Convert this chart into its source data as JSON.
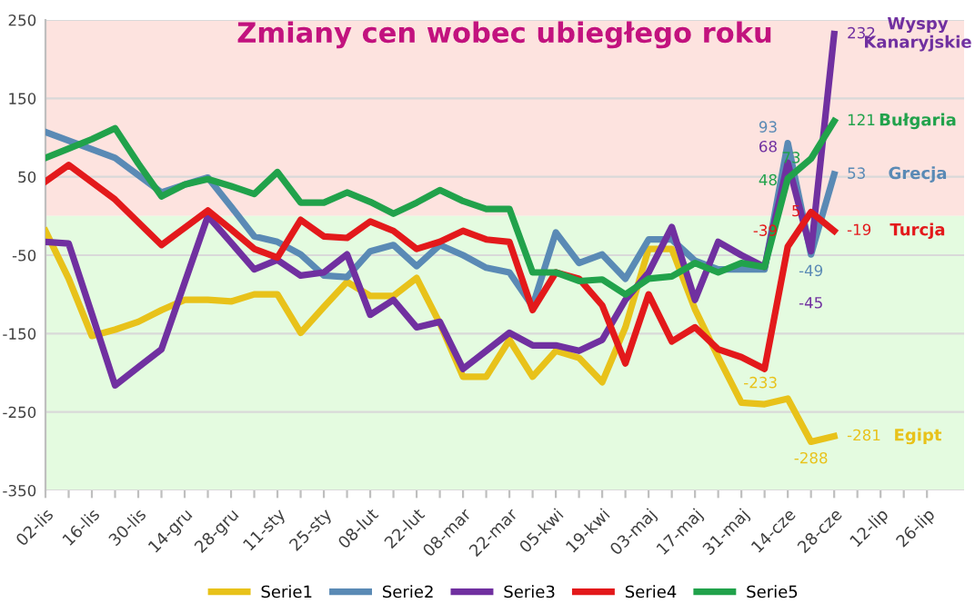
{
  "chart_data": {
    "type": "line",
    "title": "Zmiany cen wobec ubiegłego roku",
    "categories": [
      "02-lis",
      null,
      "16-lis",
      null,
      "30-lis",
      null,
      "14-gru",
      null,
      "28-gru",
      null,
      "11-sty",
      null,
      "25-sty",
      null,
      "08-lut",
      null,
      "22-lut",
      null,
      "08-mar",
      null,
      "22-mar",
      null,
      "05-kwi",
      null,
      "19-kwi",
      null,
      "03-maj",
      null,
      "17-maj",
      null,
      "31-maj",
      null,
      "14-cze",
      null,
      "28-cze",
      null,
      "12-lip",
      null,
      "26-lip"
    ],
    "series": [
      {
        "name": "Serie1",
        "color": "#e8c21a",
        "values": [
          -19,
          -80,
          -153,
          -145,
          -135,
          -120,
          -107,
          -107,
          -109,
          -100,
          -100,
          -149,
          -116,
          -84,
          -102,
          -102,
          -79,
          -137,
          -205,
          -205,
          -158,
          -205,
          -172,
          -181,
          -212,
          -142,
          -42,
          -42,
          -119,
          -180,
          -238,
          -240,
          -233,
          -288,
          -281,
          null,
          null,
          null,
          null
        ],
        "value_labels": [
          null,
          null,
          null,
          null,
          null,
          null,
          null,
          null,
          null,
          null,
          null,
          null,
          null,
          null,
          null,
          null,
          null,
          null,
          null,
          null,
          null,
          null,
          null,
          null,
          null,
          null,
          null,
          null,
          null,
          null,
          null,
          null,
          "-233",
          "-288",
          "-281",
          null,
          null,
          null,
          null
        ]
      },
      {
        "name": "Serie2",
        "color": "#5a8ab5",
        "values": [
          107,
          96,
          85,
          74,
          52,
          30,
          40,
          49,
          12,
          -26,
          -33,
          -49,
          -76,
          -78,
          -45,
          -37,
          -64,
          -37,
          -50,
          -66,
          -72,
          -115,
          -21,
          -60,
          -49,
          -80,
          -30,
          -30,
          -57,
          -68,
          -68,
          -68,
          93,
          -49,
          53,
          null,
          null,
          null,
          null
        ],
        "value_labels": [
          null,
          null,
          null,
          null,
          null,
          null,
          null,
          null,
          null,
          null,
          null,
          null,
          null,
          null,
          null,
          null,
          null,
          null,
          null,
          null,
          null,
          null,
          null,
          null,
          null,
          null,
          null,
          null,
          null,
          null,
          null,
          null,
          "93",
          "-49",
          "53",
          null,
          null,
          null,
          null
        ]
      },
      {
        "name": "Serie3",
        "color": "#7030a0",
        "values": [
          -33,
          -35,
          -125,
          -216,
          -193,
          -170,
          -85,
          0,
          -34,
          -68,
          -56,
          -76,
          -72,
          -49,
          -126,
          -107,
          -142,
          -135,
          -195,
          -172,
          -149,
          -165,
          -165,
          -172,
          -158,
          -107,
          -72,
          -14,
          -107,
          -33,
          -50,
          -65,
          68,
          -45,
          232,
          null,
          null,
          null,
          null
        ],
        "value_labels": [
          null,
          null,
          null,
          null,
          null,
          null,
          null,
          null,
          null,
          null,
          null,
          null,
          null,
          null,
          null,
          null,
          null,
          null,
          null,
          null,
          null,
          null,
          null,
          null,
          null,
          null,
          null,
          null,
          null,
          null,
          null,
          null,
          "68",
          "-45",
          "232",
          null,
          null,
          null,
          null
        ]
      },
      {
        "name": "Serie4",
        "color": "#e3191b",
        "values": [
          44,
          65,
          43,
          21,
          -8,
          -37,
          -15,
          7,
          -17,
          -42,
          -53,
          -5,
          -26,
          -28,
          -7,
          -19,
          -42,
          -33,
          -19,
          -30,
          -33,
          -120,
          -72,
          -80,
          -114,
          -188,
          -100,
          -160,
          -142,
          -170,
          -180,
          -195,
          -39,
          5,
          -19,
          null,
          null,
          null,
          null
        ],
        "value_labels": [
          null,
          null,
          null,
          null,
          null,
          null,
          null,
          null,
          null,
          null,
          null,
          null,
          null,
          null,
          null,
          null,
          null,
          null,
          null,
          null,
          null,
          null,
          null,
          null,
          null,
          null,
          null,
          null,
          null,
          null,
          null,
          null,
          "-39",
          "5",
          "-19",
          null,
          null,
          null,
          null
        ]
      },
      {
        "name": "Serie5",
        "color": "#21a24b",
        "values": [
          74,
          86,
          98,
          112,
          67,
          25,
          40,
          47,
          38,
          28,
          56,
          17,
          17,
          30,
          18,
          3,
          17,
          33,
          19,
          9,
          9,
          -72,
          -72,
          -83,
          -81,
          -100,
          -80,
          -77,
          -60,
          -72,
          -60,
          -65,
          48,
          73,
          121,
          null,
          null,
          null,
          null
        ],
        "value_labels": [
          null,
          null,
          null,
          null,
          null,
          null,
          null,
          null,
          null,
          null,
          null,
          null,
          null,
          null,
          null,
          null,
          null,
          null,
          null,
          null,
          null,
          null,
          null,
          null,
          null,
          null,
          null,
          null,
          null,
          null,
          null,
          null,
          "48",
          "73",
          "121",
          null,
          null,
          null,
          null
        ]
      }
    ],
    "annotations": [
      "Egipt",
      "Grecja",
      "Wyspy\nKanaryjskie",
      "Turcja",
      "Bułgaria"
    ],
    "bands": [
      {
        "axis": "y",
        "from": 0,
        "to": 250,
        "color": "#fde3df"
      },
      {
        "axis": "y",
        "from": -350,
        "to": 0,
        "color": "#e4fbe0"
      }
    ],
    "ylim": [
      -350,
      250
    ],
    "yticks": [
      250,
      150,
      50,
      -50,
      -150,
      -250,
      -350
    ],
    "grid": "y",
    "legend": "bottom",
    "line_style": "solid",
    "marker": "none"
  }
}
